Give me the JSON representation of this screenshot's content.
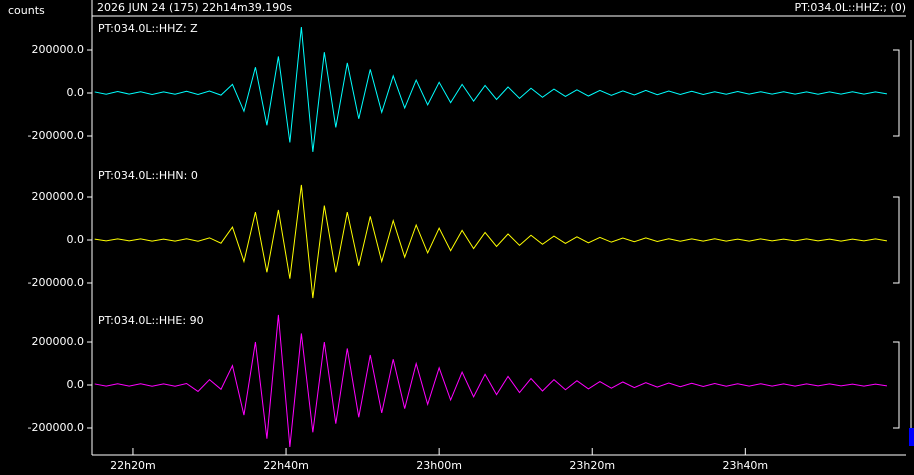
{
  "header": {
    "y_label": "counts",
    "start_time": "2026 JUN 24 (175)  22h14m39.190s",
    "selected_channel": "PT:034.0L::HHZ:; (0)"
  },
  "chart_data": {
    "type": "line",
    "x": [
      1335,
      1336.5,
      1338,
      1339.5,
      1341,
      1342.5,
      1344,
      1345.5,
      1347,
      1348.5,
      1350,
      1351.5,
      1353,
      1354.5,
      1356,
      1357.5,
      1359,
      1360.5,
      1362,
      1363.5,
      1365,
      1366.5,
      1368,
      1369.5,
      1371,
      1372.5,
      1374,
      1375.5,
      1377,
      1378.5,
      1380,
      1381.5,
      1383,
      1384.5,
      1386,
      1387.5,
      1389,
      1390.5,
      1392,
      1393.5,
      1395,
      1396.5,
      1398,
      1399.5,
      1401,
      1402.5,
      1404,
      1405.5,
      1407,
      1408.5,
      1410,
      1411.5,
      1413,
      1414.5,
      1416,
      1417.5,
      1419,
      1420.5,
      1422,
      1423.5,
      1425,
      1426.5,
      1428,
      1429.5,
      1431,
      1432.5,
      1434,
      1435.5,
      1437,
      1438.5
    ],
    "xlim": [
      1334.65,
      1438.9
    ],
    "xticks": [
      {
        "value": 1340,
        "label": "22h20m"
      },
      {
        "value": 1360,
        "label": "22h40m"
      },
      {
        "value": 1380,
        "label": "23h00m"
      },
      {
        "value": 1400,
        "label": "23h20m"
      },
      {
        "value": 1420,
        "label": "23h40m"
      }
    ],
    "ylim": [
      -335000,
      335000
    ],
    "yticks": [
      {
        "value": 200000,
        "label": "200000.0"
      },
      {
        "value": 0,
        "label": "0.0"
      },
      {
        "value": -200000,
        "label": "-200000.0"
      }
    ],
    "series": [
      {
        "name": "PT:034.0L::HHZ: Z",
        "color": "#00ffff",
        "values": [
          5000,
          -6000,
          7000,
          -5000,
          6000,
          -7000,
          5000,
          -6000,
          8000,
          -7000,
          9000,
          -10000,
          40000,
          -85000,
          120000,
          -150000,
          170000,
          -230000,
          307000,
          -274000,
          190000,
          -160000,
          140000,
          -120000,
          110000,
          -90000,
          80000,
          -70000,
          60000,
          -55000,
          50000,
          -45000,
          40000,
          -38000,
          35000,
          -30000,
          28000,
          -25000,
          22000,
          -20000,
          18000,
          -16000,
          15000,
          -14000,
          12000,
          -11000,
          10000,
          -9000,
          12000,
          -8000,
          9000,
          -7000,
          8000,
          -7000,
          6000,
          -6000,
          7000,
          -5000,
          6000,
          -5000,
          6000,
          -5000,
          5000,
          -6000,
          5000,
          -5000,
          6000,
          -5000,
          5000,
          -4000
        ]
      },
      {
        "name": "PT:034.0L::HHN: 0",
        "color": "#ffff00",
        "values": [
          4000,
          -4000,
          5000,
          -4000,
          5000,
          -5000,
          4000,
          -5000,
          6000,
          -6000,
          10000,
          -15000,
          60000,
          -100000,
          130000,
          -150000,
          140000,
          -180000,
          256000,
          -270000,
          160000,
          -150000,
          130000,
          -120000,
          110000,
          -100000,
          90000,
          -80000,
          70000,
          -60000,
          55000,
          -50000,
          45000,
          -40000,
          35000,
          -30000,
          28000,
          -25000,
          22000,
          -20000,
          18000,
          -16000,
          15000,
          -13000,
          12000,
          -10000,
          9000,
          -8000,
          10000,
          -7000,
          6000,
          -6000,
          5000,
          -5000,
          6000,
          -5000,
          4000,
          -5000,
          5000,
          -4000,
          4000,
          -4000,
          5000,
          -4000,
          4000,
          -5000,
          4000,
          -4000,
          5000,
          -4000
        ]
      },
      {
        "name": "PT:034.0L::HHE: 90",
        "color": "#ff00ff",
        "values": [
          5000,
          -5000,
          6000,
          -5000,
          6000,
          -6000,
          5000,
          -6000,
          7000,
          -30000,
          25000,
          -20000,
          90000,
          -140000,
          200000,
          -250000,
          326000,
          -288000,
          240000,
          -220000,
          200000,
          -180000,
          170000,
          -150000,
          140000,
          -130000,
          120000,
          -110000,
          100000,
          -90000,
          80000,
          -70000,
          60000,
          -55000,
          50000,
          -45000,
          40000,
          -35000,
          30000,
          -28000,
          25000,
          -22000,
          20000,
          -18000,
          16000,
          -15000,
          14000,
          -12000,
          11000,
          -10000,
          9000,
          -8000,
          8000,
          -7000,
          7000,
          -6000,
          6000,
          -5000,
          6000,
          -5000,
          5000,
          -5000,
          5000,
          -4000,
          5000,
          -4000,
          4000,
          -5000,
          4000,
          -4000
        ]
      }
    ]
  }
}
